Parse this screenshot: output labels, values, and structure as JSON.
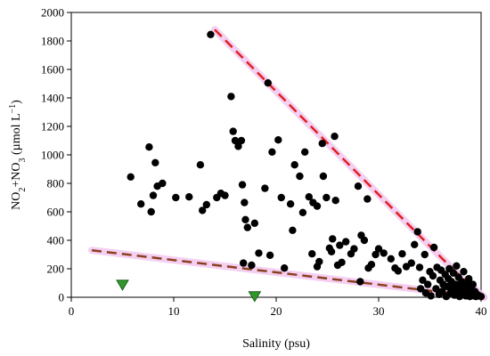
{
  "chart_data": {
    "type": "scatter",
    "xlabel": "Salinity (psu)",
    "ylabel_parts": [
      "NO",
      "2",
      "+NO",
      "3",
      " (µmol L",
      "−1",
      ")"
    ],
    "xlim": [
      0,
      40
    ],
    "ylim": [
      0,
      2000
    ],
    "x_ticks": [
      0,
      10,
      20,
      30,
      40
    ],
    "y_ticks": [
      0,
      200,
      400,
      600,
      800,
      1000,
      1200,
      1400,
      1600,
      1800,
      2000
    ],
    "series": [
      {
        "marker": "circle",
        "color": "#000000",
        "points": [
          [
            5.8,
            845
          ],
          [
            6.8,
            655
          ],
          [
            7.6,
            1055
          ],
          [
            7.8,
            600
          ],
          [
            8.0,
            715
          ],
          [
            8.2,
            945
          ],
          [
            8.4,
            780
          ],
          [
            8.9,
            800
          ],
          [
            10.2,
            700
          ],
          [
            11.5,
            705
          ],
          [
            12.6,
            930
          ],
          [
            12.8,
            610
          ],
          [
            13.2,
            650
          ],
          [
            13.6,
            1845
          ],
          [
            14.2,
            700
          ],
          [
            14.6,
            730
          ],
          [
            15.0,
            715
          ],
          [
            15.6,
            1410
          ],
          [
            15.8,
            1165
          ],
          [
            16.0,
            1100
          ],
          [
            16.3,
            1060
          ],
          [
            16.6,
            1100
          ],
          [
            16.7,
            790
          ],
          [
            16.9,
            665
          ],
          [
            17.0,
            545
          ],
          [
            17.2,
            490
          ],
          [
            16.8,
            240
          ],
          [
            17.6,
            225
          ],
          [
            17.9,
            520
          ],
          [
            18.3,
            310
          ],
          [
            18.9,
            765
          ],
          [
            19.2,
            1505
          ],
          [
            19.4,
            295
          ],
          [
            19.6,
            1020
          ],
          [
            20.2,
            1105
          ],
          [
            20.5,
            700
          ],
          [
            20.8,
            205
          ],
          [
            21.4,
            655
          ],
          [
            21.6,
            470
          ],
          [
            21.8,
            930
          ],
          [
            22.3,
            850
          ],
          [
            22.6,
            595
          ],
          [
            22.8,
            1020
          ],
          [
            23.2,
            705
          ],
          [
            23.5,
            305
          ],
          [
            23.6,
            665
          ],
          [
            24.0,
            215
          ],
          [
            24.2,
            250
          ],
          [
            24.0,
            640
          ],
          [
            24.5,
            1080
          ],
          [
            24.6,
            850
          ],
          [
            24.9,
            700
          ],
          [
            25.2,
            345
          ],
          [
            25.4,
            320
          ],
          [
            25.5,
            410
          ],
          [
            25.7,
            1130
          ],
          [
            25.8,
            680
          ],
          [
            26.0,
            225
          ],
          [
            26.2,
            365
          ],
          [
            26.4,
            245
          ],
          [
            26.8,
            390
          ],
          [
            27.3,
            305
          ],
          [
            27.6,
            340
          ],
          [
            28.0,
            780
          ],
          [
            28.3,
            435
          ],
          [
            28.6,
            400
          ],
          [
            28.9,
            690
          ],
          [
            29.0,
            205
          ],
          [
            29.3,
            230
          ],
          [
            29.7,
            300
          ],
          [
            30.0,
            340
          ],
          [
            30.5,
            310
          ],
          [
            31.2,
            270
          ],
          [
            31.6,
            205
          ],
          [
            31.9,
            185
          ],
          [
            32.3,
            305
          ],
          [
            32.7,
            215
          ],
          [
            33.2,
            240
          ],
          [
            33.5,
            370
          ],
          [
            33.8,
            460
          ],
          [
            34.0,
            210
          ],
          [
            34.1,
            60
          ],
          [
            34.3,
            120
          ],
          [
            34.5,
            300
          ],
          [
            34.6,
            30
          ],
          [
            34.8,
            90
          ],
          [
            35.0,
            180
          ],
          [
            35.1,
            10
          ],
          [
            35.3,
            150
          ],
          [
            35.4,
            350
          ],
          [
            35.6,
            60
          ],
          [
            35.7,
            210
          ],
          [
            35.9,
            20
          ],
          [
            36.0,
            120
          ],
          [
            36.1,
            190
          ],
          [
            36.2,
            40
          ],
          [
            36.3,
            90
          ],
          [
            36.5,
            160
          ],
          [
            36.6,
            5
          ],
          [
            36.7,
            75
          ],
          [
            36.8,
            130
          ],
          [
            36.9,
            200
          ],
          [
            37.0,
            30
          ],
          [
            37.1,
            110
          ],
          [
            37.2,
            60
          ],
          [
            37.3,
            170
          ],
          [
            37.4,
            15
          ],
          [
            37.5,
            90
          ],
          [
            37.6,
            220
          ],
          [
            37.7,
            45
          ],
          [
            37.8,
            140
          ],
          [
            37.9,
            5
          ],
          [
            38.0,
            70
          ],
          [
            38.1,
            110
          ],
          [
            38.2,
            25
          ],
          [
            38.3,
            180
          ],
          [
            38.4,
            60
          ],
          [
            38.5,
            10
          ],
          [
            38.6,
            95
          ],
          [
            38.7,
            40
          ],
          [
            38.8,
            130
          ],
          [
            38.9,
            5
          ],
          [
            39.0,
            60
          ],
          [
            39.1,
            20
          ],
          [
            39.2,
            90
          ],
          [
            39.3,
            10
          ],
          [
            39.4,
            40
          ],
          [
            39.5,
            5
          ],
          [
            39.6,
            20
          ],
          [
            39.8,
            10
          ],
          [
            40.0,
            5
          ],
          [
            28.2,
            110
          ]
        ]
      },
      {
        "marker": "triangle-down",
        "color": "#2f9a2a",
        "points": [
          [
            5.0,
            85
          ],
          [
            17.9,
            5
          ]
        ]
      }
    ],
    "lines": [
      {
        "color": "#e02020",
        "style": "dashed",
        "points": [
          [
            14.0,
            1880
          ],
          [
            37.2,
            200
          ]
        ]
      },
      {
        "color": "#8c4020",
        "style": "dashed",
        "points": [
          [
            37.2,
            200
          ],
          [
            40.3,
            0
          ]
        ]
      },
      {
        "color": "#8c4020",
        "style": "dashed",
        "points": [
          [
            2.0,
            330
          ],
          [
            40.3,
            0
          ]
        ]
      }
    ],
    "highlight_color": "#f2c4ee"
  }
}
